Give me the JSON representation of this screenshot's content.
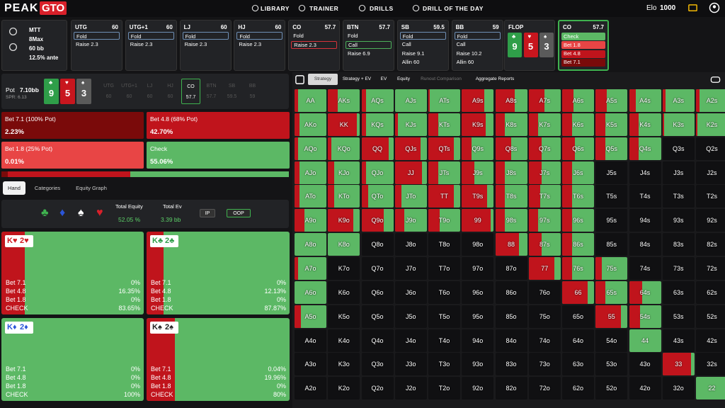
{
  "nav": {
    "logo_main": "PEAK",
    "logo_accent": "GTO",
    "links": [
      "LIBRARY",
      "TRAINER",
      "DRILLS",
      "DRILL OF THE DAY"
    ],
    "elo_label": "Elo",
    "elo_value": "1000"
  },
  "game": {
    "format": "MTT",
    "table": "8Max",
    "stack": "60 bb",
    "ante": "12.5% ante"
  },
  "positions": [
    {
      "name": "UTG",
      "stack": "60",
      "actions": [
        "Fold",
        "Raise 2.3"
      ],
      "selected": 0,
      "highlight": "#6f8fb5"
    },
    {
      "name": "UTG+1",
      "stack": "60",
      "actions": [
        "Fold",
        "Raise 2.3"
      ],
      "selected": 0,
      "highlight": "#6f8fb5"
    },
    {
      "name": "LJ",
      "stack": "60",
      "actions": [
        "Fold",
        "Raise 2.3"
      ],
      "selected": 0,
      "highlight": "#6f8fb5"
    },
    {
      "name": "HJ",
      "stack": "60",
      "actions": [
        "Fold",
        "Raise 2.3"
      ],
      "selected": 0,
      "highlight": "#6f8fb5"
    },
    {
      "name": "CO",
      "stack": "57.7",
      "actions": [
        "Fold",
        "Raise 2.3"
      ],
      "selected": 1,
      "highlight": "#d8333a"
    },
    {
      "name": "BTN",
      "stack": "57.7",
      "actions": [
        "Fold",
        "Call",
        "Raise 6.9"
      ],
      "selected": 1,
      "highlight": "#4caf5a"
    },
    {
      "name": "SB",
      "stack": "59.5",
      "actions": [
        "Fold",
        "Call",
        "Raise 9.1",
        "Allin 60"
      ],
      "selected": 0,
      "highlight": "#6f8fb5"
    },
    {
      "name": "BB",
      "stack": "59",
      "actions": [
        "Fold",
        "Call",
        "Raise 10.2",
        "Allin 60"
      ],
      "selected": 0,
      "highlight": "#6f8fb5"
    }
  ],
  "flop": {
    "label": "FLOP",
    "cards": [
      {
        "rank": "9",
        "suit": "♣",
        "color": "#2f9e49"
      },
      {
        "rank": "5",
        "suit": "♥",
        "color": "#c8161e"
      },
      {
        "rank": "3",
        "suit": "♠",
        "color": "#5a5a5a"
      }
    ]
  },
  "current": {
    "name": "CO",
    "stack": "57.7",
    "options": [
      {
        "label": "Check",
        "color": "#5cb865"
      },
      {
        "label": "Bet 1.8",
        "color": "#e84545"
      },
      {
        "label": "Bet 4.8",
        "color": "#c0141c"
      },
      {
        "label": "Bet 7.1",
        "color": "#7a0a0a"
      }
    ]
  },
  "pot_row": {
    "pot_label": "Pot",
    "pot": "7.10bb",
    "spr": "SPR: 6.13",
    "active": 4,
    "seats": [
      {
        "name": "UTG",
        "stack": "60"
      },
      {
        "name": "UTG+1",
        "stack": "60"
      },
      {
        "name": "LJ",
        "stack": "60"
      },
      {
        "name": "HJ",
        "stack": "60"
      },
      {
        "name": "CO",
        "stack": "57.7"
      },
      {
        "name": "BTN",
        "stack": "57.7"
      },
      {
        "name": "SB",
        "stack": "59.5"
      },
      {
        "name": "BB",
        "stack": "59"
      }
    ]
  },
  "actions": [
    {
      "label": "Bet 7.1 (100% Pot)",
      "value": 2.23,
      "value_label": "2.23%",
      "color": "#7a0a0a"
    },
    {
      "label": "Bet 4.8 (68% Pot)",
      "value": 42.7,
      "value_label": "42.70%",
      "color": "#c0141c"
    },
    {
      "label": "Bet 1.8 (25% Pot)",
      "value": 0.01,
      "value_label": "0.01%",
      "color": "#e84545"
    },
    {
      "label": "Check",
      "value": 55.06,
      "value_label": "55.06%",
      "color": "#5cb865"
    }
  ],
  "tabs": [
    "Hand",
    "Categories",
    "Equity Graph"
  ],
  "suits": [
    {
      "symbol": "♣",
      "color": "#3fb24f"
    },
    {
      "symbol": "♦",
      "color": "#2b55d8"
    },
    {
      "symbol": "♠",
      "color": "#ffffff"
    },
    {
      "symbol": "♥",
      "color": "#d8202a"
    }
  ],
  "equity": {
    "label": "Total Equity",
    "value": "52.05 %"
  },
  "ev": {
    "label": "Total Ev",
    "value": "3.39 bb"
  },
  "toggles": [
    "IP",
    "OOP"
  ],
  "hand_rows": [
    "Bet 7.1",
    "Bet 4.8",
    "Bet 1.8",
    "CHECK"
  ],
  "hands": [
    {
      "cards": [
        "K♥",
        "2♥"
      ],
      "color": "#d01a22",
      "values": [
        0,
        16.35,
        0,
        83.65
      ],
      "value_labels": [
        "0%",
        "16.35%",
        "0%",
        "83.65%"
      ]
    },
    {
      "cards": [
        "K♣",
        "2♣"
      ],
      "color": "#2f9e49",
      "values": [
        0,
        12.13,
        0,
        87.87
      ],
      "value_labels": [
        "0%",
        "12.13%",
        "0%",
        "87.87%"
      ]
    },
    {
      "cards": [
        "K♦",
        "2♦"
      ],
      "color": "#2b55d8",
      "values": [
        0,
        0,
        0,
        100
      ],
      "value_labels": [
        "0%",
        "0%",
        "0%",
        "100%"
      ]
    },
    {
      "cards": [
        "K♠",
        "2♠"
      ],
      "color": "#222222",
      "values": [
        0.04,
        19.96,
        0,
        80
      ],
      "value_labels": [
        "0.04%",
        "19.96%",
        "0%",
        "80%"
      ]
    }
  ],
  "strategy_tabs": [
    "Strategy",
    "Strategy + EV",
    "EV",
    "Equity",
    "Runout Comparison",
    "Aggregate Reports"
  ],
  "matrix": {
    "colors": {
      "bet": "#c0141c",
      "check": "#5cb865",
      "empty": "#101012"
    },
    "labels": [
      [
        "AA",
        "AKs",
        "AQs",
        "AJs",
        "ATs",
        "A9s",
        "A8s",
        "A7s",
        "A6s",
        "A5s",
        "A4s",
        "A3s",
        "A2s"
      ],
      [
        "AKo",
        "KK",
        "KQs",
        "KJs",
        "KTs",
        "K9s",
        "K8s",
        "K7s",
        "K6s",
        "K5s",
        "K4s",
        "K3s",
        "K2s"
      ],
      [
        "AQo",
        "KQo",
        "QQ",
        "QJs",
        "QTs",
        "Q9s",
        "Q8s",
        "Q7s",
        "Q6s",
        "Q5s",
        "Q4s",
        "Q3s",
        "Q2s"
      ],
      [
        "AJo",
        "KJo",
        "QJo",
        "JJ",
        "JTs",
        "J9s",
        "J8s",
        "J7s",
        "J6s",
        "J5s",
        "J4s",
        "J3s",
        "J2s"
      ],
      [
        "ATo",
        "KTo",
        "QTo",
        "JTo",
        "TT",
        "T9s",
        "T8s",
        "T7s",
        "T6s",
        "T5s",
        "T4s",
        "T3s",
        "T2s"
      ],
      [
        "A9o",
        "K9o",
        "Q9o",
        "J9o",
        "T9o",
        "99",
        "98s",
        "97s",
        "96s",
        "95s",
        "94s",
        "93s",
        "92s"
      ],
      [
        "A8o",
        "K8o",
        "Q8o",
        "J8o",
        "T8o",
        "98o",
        "88",
        "87s",
        "86s",
        "85s",
        "84s",
        "83s",
        "82s"
      ],
      [
        "A7o",
        "K7o",
        "Q7o",
        "J7o",
        "T7o",
        "97o",
        "87o",
        "77",
        "76s",
        "75s",
        "74s",
        "73s",
        "72s"
      ],
      [
        "A6o",
        "K6o",
        "Q6o",
        "J6o",
        "T6o",
        "96o",
        "86o",
        "76o",
        "66",
        "65s",
        "64s",
        "63s",
        "62s"
      ],
      [
        "A5o",
        "K5o",
        "Q5o",
        "J5o",
        "T5o",
        "95o",
        "85o",
        "75o",
        "65o",
        "55",
        "54s",
        "53s",
        "52s"
      ],
      [
        "A4o",
        "K4o",
        "Q4o",
        "J4o",
        "T4o",
        "94o",
        "84o",
        "74o",
        "64o",
        "54o",
        "44",
        "43s",
        "42s"
      ],
      [
        "A3o",
        "K3o",
        "Q3o",
        "J3o",
        "T3o",
        "93o",
        "83o",
        "73o",
        "63o",
        "53o",
        "43o",
        "33",
        "32s"
      ],
      [
        "A2o",
        "K2o",
        "Q2o",
        "J2o",
        "T2o",
        "92o",
        "82o",
        "72o",
        "62o",
        "52o",
        "42o",
        "32o",
        "22"
      ]
    ],
    "bet": [
      [
        0.1,
        0.3,
        0.15,
        0,
        0.05,
        0.7,
        0.6,
        0.5,
        0.35,
        0.35,
        0.2,
        0.1,
        0.1
      ],
      [
        0.15,
        0.9,
        0.15,
        0.1,
        0.3,
        0.75,
        0.3,
        0.3,
        0.3,
        0.3,
        0.3,
        0.05,
        0.05
      ],
      [
        0.1,
        0.1,
        0.85,
        0.8,
        0.8,
        0.3,
        0.5,
        0.4,
        0.4,
        0.3,
        0.3,
        null,
        null
      ],
      [
        0.15,
        0.2,
        0.15,
        0.85,
        0.3,
        0.4,
        0.3,
        0.4,
        0.3,
        null,
        null,
        null,
        null
      ],
      [
        0.15,
        0.2,
        0.2,
        0.2,
        0.8,
        0.8,
        0.3,
        0.35,
        0.3,
        null,
        null,
        null,
        null
      ],
      [
        0.3,
        0.8,
        0.7,
        0.3,
        0.35,
        0.9,
        0.3,
        0.3,
        0.3,
        null,
        null,
        null,
        null
      ],
      [
        0,
        0,
        null,
        null,
        null,
        null,
        0.75,
        0.4,
        0.3,
        null,
        null,
        null,
        null
      ],
      [
        0.1,
        null,
        null,
        null,
        null,
        null,
        null,
        0.8,
        0.3,
        0.2,
        null,
        null,
        null
      ],
      [
        0,
        null,
        null,
        null,
        null,
        null,
        null,
        null,
        0.8,
        0.3,
        0.4,
        null,
        null
      ],
      [
        0.2,
        null,
        null,
        null,
        null,
        null,
        null,
        null,
        null,
        0.8,
        0.35,
        null,
        null
      ],
      [
        null,
        null,
        null,
        null,
        null,
        null,
        null,
        null,
        null,
        null,
        0,
        null,
        null
      ],
      [
        null,
        null,
        null,
        null,
        null,
        null,
        null,
        null,
        null,
        null,
        null,
        0.9,
        null
      ],
      [
        null,
        null,
        null,
        null,
        null,
        null,
        null,
        null,
        null,
        null,
        null,
        null,
        0
      ]
    ]
  }
}
